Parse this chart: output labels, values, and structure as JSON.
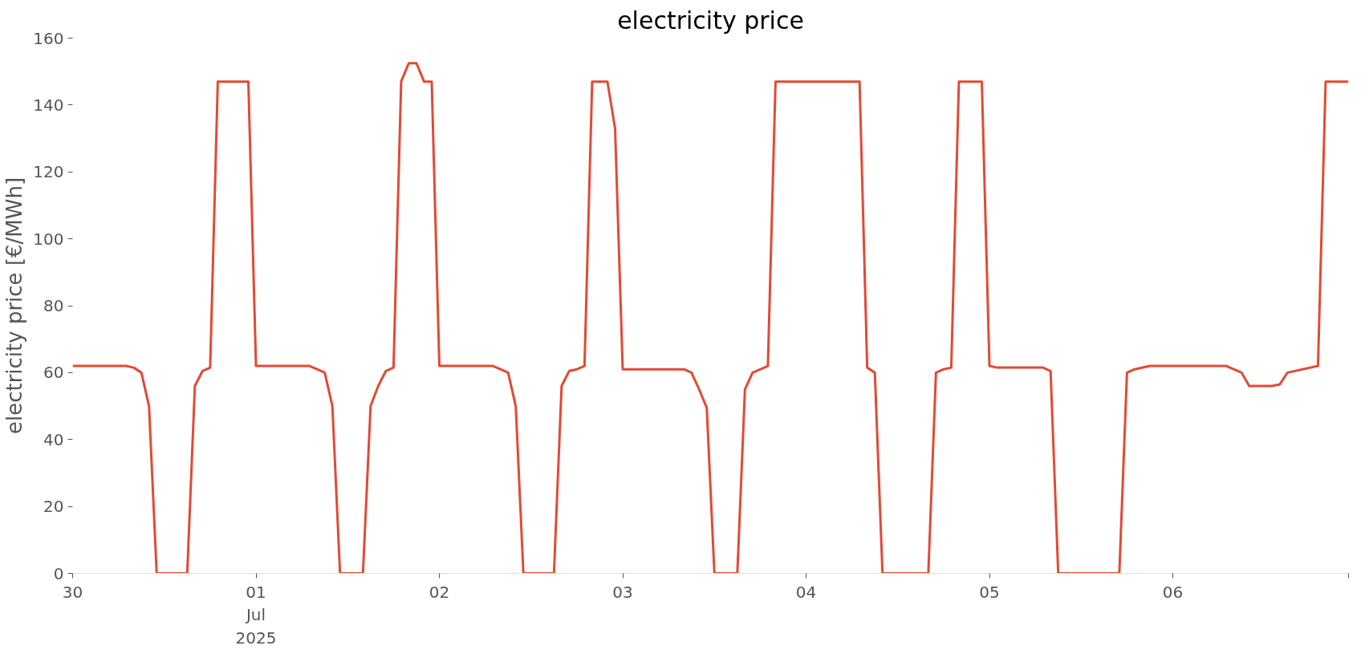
{
  "chart_data": {
    "type": "line",
    "title": "electricity price",
    "ylabel": "electricity price [€/MWh]",
    "xlim": [
      "2025-06-30T00:00",
      "2025-07-06T23:00"
    ],
    "xticks": [
      {
        "value": "2025-06-30",
        "label": "30"
      },
      {
        "value": "2025-07-01",
        "label": "01\nJul\n2025"
      },
      {
        "value": "2025-07-02",
        "label": "02"
      },
      {
        "value": "2025-07-03",
        "label": "03"
      },
      {
        "value": "2025-07-04",
        "label": "04"
      },
      {
        "value": "2025-07-05",
        "label": "05"
      },
      {
        "value": "2025-07-06",
        "label": "06"
      },
      {
        "value": "2025-07-06T23:00",
        "label": null
      }
    ],
    "ylim": [
      0,
      160
    ],
    "yticks": [
      0,
      20,
      40,
      60,
      80,
      100,
      120,
      140,
      160
    ],
    "grid": false,
    "series": [
      {
        "color": "#e24a33",
        "x": [
          "2025-06-30T00:00",
          "2025-06-30T07:00",
          "2025-06-30T08:00",
          "2025-06-30T09:00",
          "2025-06-30T10:00",
          "2025-06-30T11:00",
          "2025-06-30T15:00",
          "2025-06-30T16:00",
          "2025-06-30T17:00",
          "2025-06-30T18:00",
          "2025-06-30T19:00",
          "2025-06-30T23:00",
          "2025-07-01T00:00",
          "2025-07-01T07:00",
          "2025-07-01T08:00",
          "2025-07-01T09:00",
          "2025-07-01T10:00",
          "2025-07-01T11:00",
          "2025-07-01T14:00",
          "2025-07-01T15:00",
          "2025-07-01T16:00",
          "2025-07-01T17:00",
          "2025-07-01T18:00",
          "2025-07-01T19:00",
          "2025-07-01T20:00",
          "2025-07-01T21:00",
          "2025-07-01T22:00",
          "2025-07-01T23:00",
          "2025-07-02T00:00",
          "2025-07-02T07:00",
          "2025-07-02T08:00",
          "2025-07-02T09:00",
          "2025-07-02T10:00",
          "2025-07-02T11:00",
          "2025-07-02T15:00",
          "2025-07-02T16:00",
          "2025-07-02T17:00",
          "2025-07-02T18:00",
          "2025-07-02T19:00",
          "2025-07-02T20:00",
          "2025-07-02T22:00",
          "2025-07-02T23:00",
          "2025-07-03T00:00",
          "2025-07-03T08:00",
          "2025-07-03T09:00",
          "2025-07-03T10:00",
          "2025-07-03T11:00",
          "2025-07-03T12:00",
          "2025-07-03T15:00",
          "2025-07-03T16:00",
          "2025-07-03T17:00",
          "2025-07-03T19:00",
          "2025-07-03T20:00",
          "2025-07-04T07:00",
          "2025-07-04T08:00",
          "2025-07-04T09:00",
          "2025-07-04T10:00",
          "2025-07-04T16:00",
          "2025-07-04T17:00",
          "2025-07-04T18:00",
          "2025-07-04T19:00",
          "2025-07-04T20:00",
          "2025-07-04T23:00",
          "2025-07-05T00:00",
          "2025-07-05T01:00",
          "2025-07-05T07:00",
          "2025-07-05T08:00",
          "2025-07-05T09:00",
          "2025-07-05T17:00",
          "2025-07-05T18:00",
          "2025-07-05T19:00",
          "2025-07-05T21:00",
          "2025-07-06T07:00",
          "2025-07-06T09:00",
          "2025-07-06T10:00",
          "2025-07-06T13:00",
          "2025-07-06T14:00",
          "2025-07-06T15:00",
          "2025-07-06T19:00",
          "2025-07-06T20:00",
          "2025-07-06T23:00"
        ],
        "values": [
          62,
          62,
          61.5,
          60,
          50,
          0,
          0,
          56,
          60.5,
          61.5,
          147,
          147,
          62,
          62,
          61,
          60,
          50,
          0,
          0,
          50,
          56,
          60.5,
          61.5,
          147,
          152.5,
          152.5,
          147,
          147,
          62,
          62,
          61,
          60,
          50,
          0,
          0,
          56,
          60.5,
          61,
          62,
          147,
          147,
          133,
          61,
          61,
          60,
          55,
          49.5,
          0,
          0,
          55,
          60,
          62,
          147,
          147,
          61.5,
          60,
          0,
          0,
          60,
          61,
          61.5,
          147,
          147,
          62,
          61.5,
          61.5,
          60.5,
          0,
          0,
          60,
          61,
          62,
          62,
          60,
          56,
          56,
          56.5,
          60,
          62,
          147,
          147
        ]
      }
    ]
  }
}
